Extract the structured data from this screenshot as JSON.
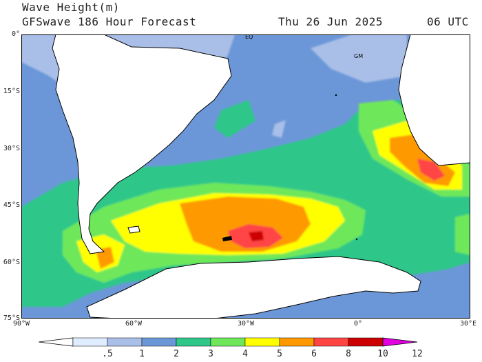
{
  "header": {
    "title": "Wave Height(m)",
    "model": "GFSwave 186 Hour Forecast",
    "date": "Thu 26 Jun 2025",
    "time": "06 UTC"
  },
  "map": {
    "projection": "lat-lon",
    "lon_range": [
      -90,
      30
    ],
    "lat_range": [
      -75,
      0
    ],
    "lat_labels": [
      "0°",
      "15°S",
      "30°S",
      "45°S",
      "60°S",
      "75°S"
    ],
    "lon_labels": [
      "90°W",
      "60°W",
      "30°W",
      "0°",
      "30°E"
    ],
    "annotations": [
      {
        "text": "EQ",
        "lon": -30,
        "lat": 0
      },
      {
        "text": "GM",
        "lon": 0,
        "lat": -5
      }
    ]
  },
  "colorbar": {
    "labels": [
      ".5",
      "1",
      "2",
      "3",
      "4",
      "5",
      "6",
      "8",
      "10",
      "12"
    ],
    "colors": [
      "#e0ecff",
      "#a9bfe8",
      "#6b97d8",
      "#2ec789",
      "#6ee85a",
      "#ffff00",
      "#ff9900",
      "#ff4444",
      "#cc0000",
      "#e000e0"
    ]
  },
  "colors": {
    "land": "#ffffff",
    "ice": "#ffffff",
    "coast": "#000000"
  }
}
